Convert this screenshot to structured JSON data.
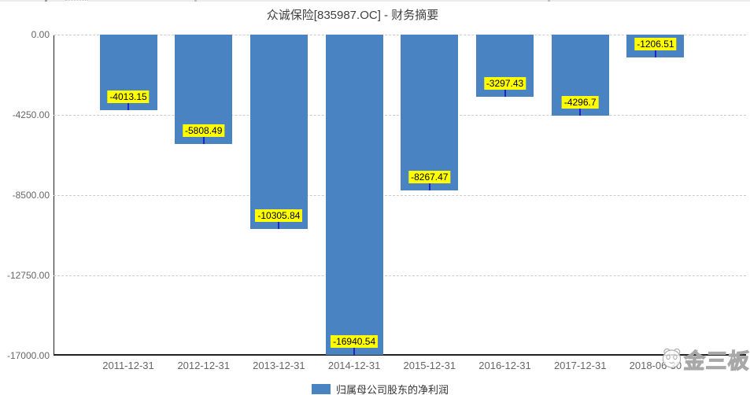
{
  "title": "众诚保险[835987.OC] - 财务摘要",
  "legend": {
    "label": "归属母公司股东的净利润"
  },
  "watermark": {
    "text": "金三板",
    "logo": "panda-logo"
  },
  "colors": {
    "bar": "#4a83c2",
    "value_label_bg": "#ffff00",
    "value_label_text": "#000000",
    "label_tick": "#2222cc",
    "gridline": "#cccccc",
    "axis_line": "#222222",
    "axis_label": "#666666",
    "title_text": "#404040",
    "legend_text": "#333333"
  },
  "chart_data": {
    "type": "bar",
    "title": "众诚保险[835987.OC] - 财务摘要",
    "categories": [
      "2011-12-31",
      "2012-12-31",
      "2013-12-31",
      "2014-12-31",
      "2015-12-31",
      "2016-12-31",
      "2017-12-31",
      "2018-06-30"
    ],
    "values": [
      -4013.15,
      -5808.49,
      -10305.84,
      -16940.54,
      -8267.47,
      -3297.43,
      -4296.7,
      -1206.51
    ],
    "value_labels": [
      "-4013.15",
      "-5808.49",
      "-10305.84",
      "-16940.54",
      "-8267.47",
      "-3297.43",
      "-4296.7",
      "-1206.51"
    ],
    "series": [
      {
        "name": "归属母公司股东的净利润",
        "values": [
          -4013.15,
          -5808.49,
          -10305.84,
          -16940.54,
          -8267.47,
          -3297.43,
          -4296.7,
          -1206.51
        ]
      }
    ],
    "xlabel": "",
    "ylabel": "",
    "ylim": [
      -17000,
      0
    ],
    "y_ticks": [
      "0.00",
      "-4250.00",
      "-8500.00",
      "-12750.00",
      "-17000.00"
    ],
    "grid": true,
    "legend_position": "bottom"
  }
}
